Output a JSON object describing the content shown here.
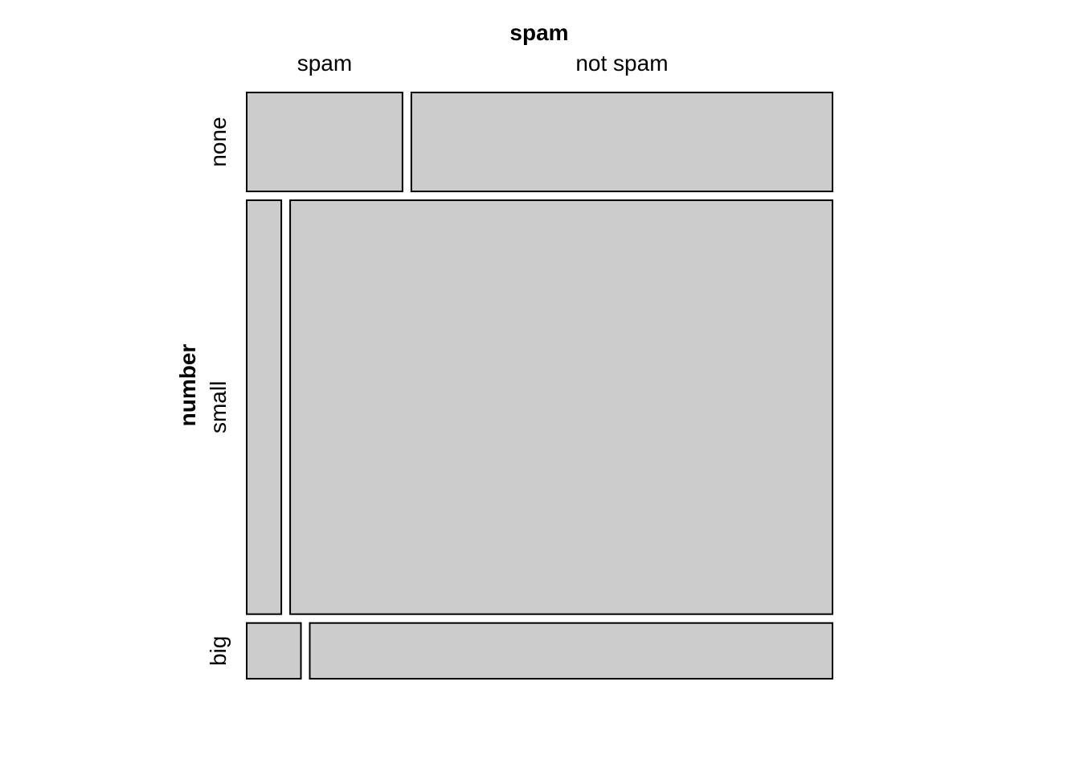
{
  "chart_data": {
    "type": "mosaic",
    "column_variable": "spam",
    "row_variable": "number",
    "column_levels": [
      "spam",
      "not spam"
    ],
    "row_levels": [
      "none",
      "small",
      "big"
    ],
    "row_proportions": [
      0.174,
      0.728,
      0.098
    ],
    "cells": [
      {
        "row": "none",
        "col": "spam",
        "share_of_row": 0.27
      },
      {
        "row": "none",
        "col": "not spam",
        "share_of_row": 0.73
      },
      {
        "row": "small",
        "col": "spam",
        "share_of_row": 0.06
      },
      {
        "row": "small",
        "col": "not spam",
        "share_of_row": 0.94
      },
      {
        "row": "big",
        "col": "spam",
        "share_of_row": 0.094
      },
      {
        "row": "big",
        "col": "not spam",
        "share_of_row": 0.906
      }
    ],
    "fill_color": "#cccccc",
    "border_color": "#000000"
  }
}
